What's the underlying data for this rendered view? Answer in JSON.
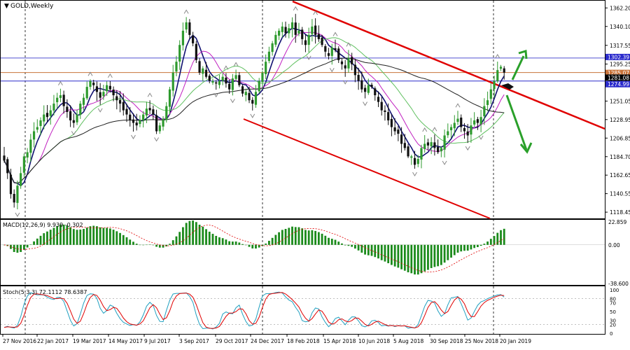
{
  "title": "GOLD,Weekly",
  "price_panel": {
    "ylim": [
      1111,
      1370
    ],
    "ticks": [
      "1362.20",
      "1340.10",
      "1317.55",
      "1295.25",
      "1273.10",
      "1251.05",
      "1228.95",
      "1206.85",
      "1184.70",
      "1162.65",
      "1140.55",
      "1118.45"
    ],
    "tick_values": [
      1362.2,
      1340.1,
      1317.55,
      1295.25,
      1273.1,
      1251.05,
      1228.95,
      1206.85,
      1184.7,
      1162.65,
      1140.55,
      1118.45
    ],
    "price_labels": [
      {
        "text": "1302.39",
        "value": 1302.39,
        "color": "#2a2acc"
      },
      {
        "text": "1285.07",
        "value": 1285.07,
        "color": "#c8733a"
      },
      {
        "text": "1281.08",
        "value": 1281.08,
        "color": "#000000"
      },
      {
        "text": "1274.99",
        "value": 1274.99,
        "color": "#2a2acc"
      }
    ],
    "hlines": [
      {
        "value": 1302.39,
        "color": "#5050d0"
      },
      {
        "value": 1285.07,
        "color": "#c8733a"
      },
      {
        "value": 1274.99,
        "color": "#2a2acc"
      }
    ]
  },
  "macd_panel": {
    "label": "MACD(12,26,9) 9.939 -0.302",
    "ylim": [
      -40,
      25
    ],
    "ticks": [
      "22.859",
      "0.00",
      "-38.600"
    ],
    "tick_values": [
      22.859,
      0,
      -38.6
    ]
  },
  "stoch_panel": {
    "label": "Stoch(5,3,3) 72.1112 78.6387",
    "ticks": [
      "100",
      "80",
      "70",
      "50",
      "30",
      "20",
      "0"
    ],
    "tick_values": [
      100,
      80,
      70,
      50,
      30,
      20,
      0
    ]
  },
  "x_labels": [
    "27 Nov 2016",
    "22 Jan 2017",
    "19 Mar 2017",
    "14 May 2017",
    "9 Jul 2017",
    "3 Sep 2017",
    "29 Oct 2017",
    "24 Dec 2017",
    "18 Feb 2018",
    "15 Apr 2018",
    "10 Jun 2018",
    "5 Aug 2018",
    "30 Sep 2018",
    "25 Nov 2018",
    "20 Jan 2019"
  ],
  "colors": {
    "bull": "#2e9a2e",
    "bear": "#111111",
    "channel": "#e00000",
    "ma_blue": "#101070",
    "ma_magenta": "#c020c0",
    "ma_green": "#60c060",
    "ma_black": "#202020",
    "macd_hist": "#1a8a1a",
    "macd_signal": "#e00000",
    "stoch_main": "#20a0c0",
    "stoch_signal": "#e00000",
    "arrow": "#2aa02a"
  },
  "chart_data": {
    "type": "candlestick",
    "symbol": "GOLD",
    "timeframe": "Weekly",
    "close": [
      1180,
      1165,
      1140,
      1130,
      1150,
      1165,
      1185,
      1190,
      1205,
      1215,
      1220,
      1228,
      1235,
      1232,
      1240,
      1248,
      1255,
      1258,
      1245,
      1238,
      1228,
      1225,
      1235,
      1248,
      1255,
      1268,
      1275,
      1270,
      1262,
      1255,
      1262,
      1270,
      1265,
      1258,
      1252,
      1248,
      1240,
      1235,
      1228,
      1225,
      1222,
      1228,
      1235,
      1242,
      1240,
      1235,
      1215,
      1222,
      1230,
      1245,
      1265,
      1285,
      1298,
      1318,
      1335,
      1345,
      1330,
      1320,
      1300,
      1285,
      1290,
      1280,
      1275,
      1275,
      1272,
      1275,
      1280,
      1272,
      1265,
      1278,
      1282,
      1270,
      1260,
      1262,
      1252,
      1248,
      1262,
      1275,
      1285,
      1298,
      1310,
      1320,
      1330,
      1335,
      1340,
      1332,
      1338,
      1345,
      1330,
      1335,
      1325,
      1318,
      1330,
      1340,
      1330,
      1325,
      1318,
      1310,
      1305,
      1315,
      1312,
      1300,
      1295,
      1290,
      1302,
      1295,
      1282,
      1275,
      1265,
      1262,
      1270,
      1268,
      1258,
      1250,
      1240,
      1238,
      1228,
      1220,
      1215,
      1212,
      1200,
      1195,
      1185,
      1185,
      1175,
      1182,
      1195,
      1200,
      1198,
      1202,
      1195,
      1190,
      1195,
      1210,
      1215,
      1220,
      1225,
      1230,
      1220,
      1215,
      1210,
      1222,
      1228,
      1225,
      1232,
      1245,
      1252,
      1265,
      1275,
      1288,
      1292,
      1285
    ]
  }
}
